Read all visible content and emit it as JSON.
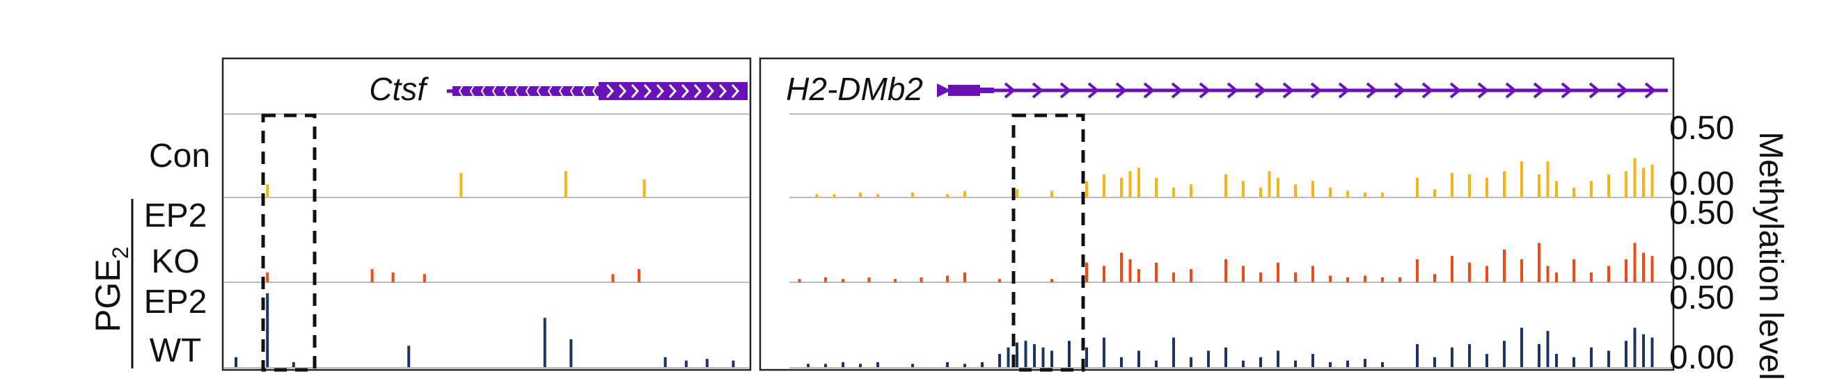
{
  "genes": {
    "left": {
      "name": "Ctsf"
    },
    "right": {
      "name": "H2-DMb2"
    }
  },
  "rows": {
    "con": {
      "label": "Con"
    },
    "ko": {
      "label_line1": "EP2",
      "label_line2": "KO"
    },
    "wt": {
      "label_line1": "EP2",
      "label_line2": "WT"
    }
  },
  "treatment": {
    "label": "PGE",
    "subscript": "2"
  },
  "axis": {
    "title": "Methylation level",
    "ticks": {
      "t1_hi": "0.50",
      "t1_lo": "0.00",
      "t2_hi": "0.50",
      "t2_lo": "0.00",
      "t3_hi": "0.50",
      "t3_lo": "0.00"
    },
    "ylim": [
      0,
      0.5
    ]
  },
  "colors": {
    "con": "#F5B517",
    "ko": "#EE4B17",
    "wt": "#1C3464",
    "gene": "#6A12B8",
    "frame": "#222222",
    "track_line": "#BBBBBB"
  },
  "chart_data": {
    "type": "bar",
    "series": [
      {
        "track": "con",
        "panel": "left",
        "x": [
          0.08,
          0.45,
          0.65,
          0.8
        ],
        "y": [
          0.08,
          0.15,
          0.16,
          0.11
        ]
      },
      {
        "track": "con",
        "panel": "right",
        "x": [
          0.03,
          0.05,
          0.08,
          0.1,
          0.14,
          0.18,
          0.2,
          0.26,
          0.3,
          0.34,
          0.36,
          0.38,
          0.39,
          0.4,
          0.42,
          0.44,
          0.46,
          0.5,
          0.52,
          0.54,
          0.55,
          0.56,
          0.58,
          0.6,
          0.62,
          0.64,
          0.66,
          0.68,
          0.72,
          0.74,
          0.76,
          0.78,
          0.8,
          0.82,
          0.84,
          0.86,
          0.87,
          0.88,
          0.9,
          0.92,
          0.94,
          0.96,
          0.97,
          0.98,
          0.99
        ],
        "y": [
          0.02,
          0.02,
          0.03,
          0.02,
          0.03,
          0.02,
          0.04,
          0.05,
          0.04,
          0.1,
          0.14,
          0.12,
          0.16,
          0.18,
          0.12,
          0.06,
          0.08,
          0.14,
          0.1,
          0.06,
          0.16,
          0.12,
          0.08,
          0.1,
          0.06,
          0.04,
          0.03,
          0.03,
          0.12,
          0.05,
          0.15,
          0.14,
          0.12,
          0.16,
          0.22,
          0.14,
          0.22,
          0.1,
          0.06,
          0.1,
          0.14,
          0.16,
          0.24,
          0.18,
          0.2
        ]
      },
      {
        "track": "ko",
        "panel": "left",
        "x": [
          0.08,
          0.28,
          0.32,
          0.38,
          0.74,
          0.79
        ],
        "y": [
          0.06,
          0.08,
          0.06,
          0.05,
          0.05,
          0.08
        ]
      },
      {
        "track": "ko",
        "panel": "right",
        "x": [
          0.01,
          0.04,
          0.06,
          0.09,
          0.12,
          0.15,
          0.18,
          0.2,
          0.24,
          0.3,
          0.34,
          0.36,
          0.38,
          0.39,
          0.4,
          0.42,
          0.44,
          0.46,
          0.5,
          0.52,
          0.54,
          0.56,
          0.58,
          0.6,
          0.62,
          0.64,
          0.66,
          0.68,
          0.7,
          0.72,
          0.74,
          0.76,
          0.78,
          0.8,
          0.82,
          0.84,
          0.86,
          0.87,
          0.88,
          0.9,
          0.92,
          0.94,
          0.96,
          0.97,
          0.98,
          0.99
        ],
        "y": [
          0.02,
          0.03,
          0.02,
          0.03,
          0.02,
          0.03,
          0.04,
          0.06,
          0.02,
          0.02,
          0.12,
          0.1,
          0.18,
          0.14,
          0.08,
          0.12,
          0.06,
          0.08,
          0.14,
          0.1,
          0.06,
          0.12,
          0.06,
          0.1,
          0.04,
          0.03,
          0.04,
          0.03,
          0.03,
          0.14,
          0.05,
          0.16,
          0.12,
          0.1,
          0.2,
          0.14,
          0.24,
          0.1,
          0.06,
          0.14,
          0.06,
          0.1,
          0.14,
          0.24,
          0.18,
          0.16
        ]
      },
      {
        "track": "wt",
        "panel": "left",
        "x": [
          0.02,
          0.08,
          0.13,
          0.35,
          0.61,
          0.66,
          0.84,
          0.88,
          0.92,
          0.97
        ],
        "y": [
          0.06,
          0.45,
          0.03,
          0.13,
          0.3,
          0.17,
          0.06,
          0.04,
          0.05,
          0.04
        ]
      },
      {
        "track": "wt",
        "panel": "right",
        "x": [
          0.02,
          0.04,
          0.06,
          0.08,
          0.1,
          0.14,
          0.18,
          0.2,
          0.22,
          0.24,
          0.25,
          0.26,
          0.27,
          0.28,
          0.29,
          0.3,
          0.32,
          0.34,
          0.36,
          0.38,
          0.4,
          0.42,
          0.44,
          0.46,
          0.48,
          0.5,
          0.52,
          0.54,
          0.56,
          0.58,
          0.6,
          0.62,
          0.64,
          0.66,
          0.68,
          0.72,
          0.74,
          0.76,
          0.78,
          0.8,
          0.82,
          0.84,
          0.86,
          0.87,
          0.88,
          0.9,
          0.92,
          0.94,
          0.96,
          0.97,
          0.98,
          0.99
        ],
        "y": [
          0.02,
          0.02,
          0.03,
          0.02,
          0.03,
          0.02,
          0.03,
          0.02,
          0.03,
          0.08,
          0.12,
          0.15,
          0.16,
          0.14,
          0.12,
          0.1,
          0.16,
          0.12,
          0.18,
          0.06,
          0.1,
          0.04,
          0.18,
          0.06,
          0.1,
          0.12,
          0.04,
          0.06,
          0.1,
          0.04,
          0.08,
          0.03,
          0.04,
          0.05,
          0.03,
          0.14,
          0.06,
          0.12,
          0.14,
          0.08,
          0.16,
          0.24,
          0.14,
          0.22,
          0.08,
          0.06,
          0.12,
          0.1,
          0.16,
          0.24,
          0.2,
          0.18
        ]
      }
    ]
  }
}
